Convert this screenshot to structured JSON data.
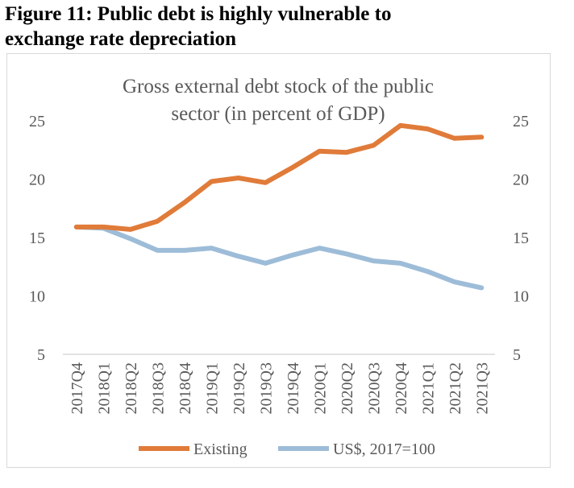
{
  "figure_title_line1": "Figure 11: Public debt is highly vulnerable to",
  "figure_title_line2": "exchange rate depreciation",
  "chart_data": {
    "type": "line",
    "title_line1": "Gross external debt stock of the public",
    "title_line2": "sector (in percent of GDP)",
    "categories": [
      "2017Q4",
      "2018Q1",
      "2018Q2",
      "2018Q3",
      "2018Q4",
      "2019Q1",
      "2019Q2",
      "2019Q3",
      "2019Q4",
      "2020Q1",
      "2020Q2",
      "2020Q3",
      "2020Q4",
      "2021Q1",
      "2021Q2",
      "2021Q3"
    ],
    "series": [
      {
        "name": "Existing",
        "color": "#e07b39",
        "values": [
          15.9,
          15.9,
          15.7,
          16.4,
          18.0,
          19.8,
          20.1,
          19.7,
          21.0,
          22.4,
          22.3,
          22.9,
          24.6,
          24.3,
          23.5,
          23.6
        ]
      },
      {
        "name": "US$, 2017=100",
        "color": "#9dbcd8",
        "values": [
          15.9,
          15.8,
          14.9,
          13.9,
          13.9,
          14.1,
          13.4,
          12.8,
          13.5,
          14.1,
          13.6,
          13.0,
          12.8,
          12.1,
          11.2,
          10.7
        ]
      }
    ],
    "y_ticks": [
      "25",
      "20",
      "15",
      "10",
      "5"
    ],
    "y_right_ticks": [
      "25",
      "20",
      "15",
      "10",
      "5"
    ],
    "ylim": [
      5,
      25
    ],
    "grid": false,
    "legend_position": "bottom"
  }
}
